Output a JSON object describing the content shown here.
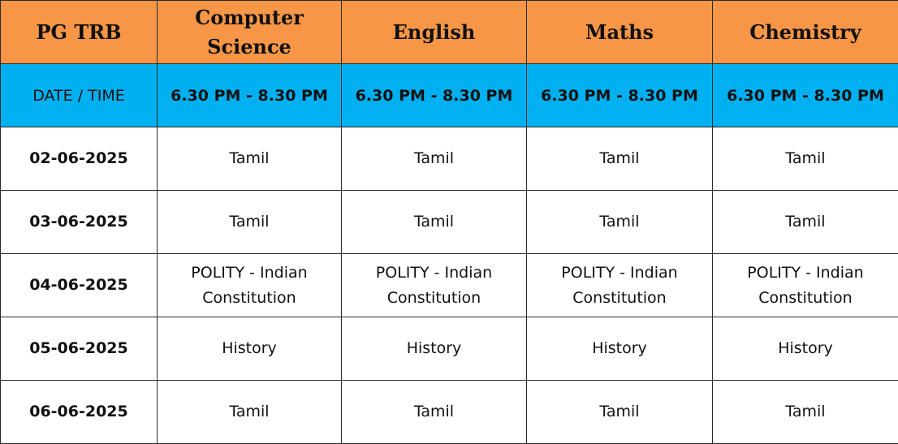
{
  "header": {
    "corner": "PG TRB",
    "subjects": [
      "Computer Science",
      "English",
      "Maths",
      "Chemistry"
    ]
  },
  "time_row": {
    "label": "DATE / TIME",
    "times": [
      "6.30 PM - 8.30 PM",
      "6.30 PM - 8.30 PM",
      "6.30 PM - 8.30 PM",
      "6.30 PM - 8.30 PM"
    ]
  },
  "rows": [
    {
      "date": "02-06-2025",
      "cells": [
        "Tamil",
        "Tamil",
        "Tamil",
        "Tamil"
      ]
    },
    {
      "date": "03-06-2025",
      "cells": [
        "Tamil",
        "Tamil",
        "Tamil",
        "Tamil"
      ]
    },
    {
      "date": "04-06-2025",
      "cells": [
        "POLITY - Indian Constitution",
        "POLITY - Indian Constitution",
        "POLITY - Indian Constitution",
        "POLITY - Indian Constitution"
      ]
    },
    {
      "date": "05-06-2025",
      "cells": [
        "History",
        "History",
        "History",
        "History"
      ]
    },
    {
      "date": "06-06-2025",
      "cells": [
        "Tamil",
        "Tamil",
        "Tamil",
        "Tamil"
      ]
    }
  ],
  "colors": {
    "header_bg": "#f79646",
    "time_row_bg": "#00b0f0",
    "border": "#2a2a2a"
  }
}
